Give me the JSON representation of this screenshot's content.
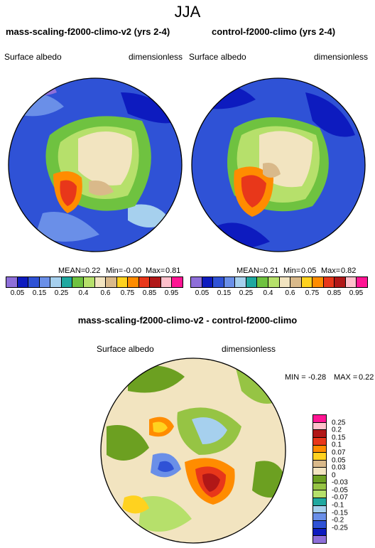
{
  "season": "JJA",
  "panels": [
    {
      "title": "mass-scaling-f2000-climo-v2 (yrs 2-4)",
      "var_label": "Surface albedo",
      "units": "dimensionless",
      "mean_label": "MEAN=",
      "mean": "0.22",
      "min_label": "Min=",
      "min": "-0.00",
      "max_label": "Max=",
      "max": "0.81"
    },
    {
      "title": "control-f2000-climo (yrs 2-4)",
      "var_label": "Surface albedo",
      "units": "dimensionless",
      "mean_label": "MEAN=",
      "mean": "0.21",
      "min_label": "Min=",
      "min": "0.05",
      "max_label": "Max=",
      "max": "0.82"
    }
  ],
  "colorbar": {
    "colors": [
      "#8e6fd9",
      "#0d1bbf",
      "#2f52d6",
      "#6a8fe8",
      "#a6d0ee",
      "#1fa8a0",
      "#6fc240",
      "#b6e06b",
      "#f2e4c0",
      "#d9b98a",
      "#ffd21f",
      "#ff8c00",
      "#e8371a",
      "#b11717",
      "#ffc0cb",
      "#ff1493"
    ],
    "ticks": [
      "0.05",
      "0.15",
      "0.25",
      "0.4",
      "0.6",
      "0.75",
      "0.85",
      "0.95"
    ]
  },
  "diff": {
    "title": "mass-scaling-f2000-climo-v2 - control-f2000-climo",
    "var_label": "Surface albedo",
    "units": "dimensionless",
    "min_label": "MIN =",
    "min": "-0.28",
    "max_label": "MAX =",
    "max": "0.22",
    "colors": [
      "#ff1493",
      "#ffc0cb",
      "#b11717",
      "#e8371a",
      "#ff8c00",
      "#ffd21f",
      "#d9b98a",
      "#f2e4c0",
      "#6ca021",
      "#96c444",
      "#b6e06b",
      "#1fa8a0",
      "#a6d0ee",
      "#6a8fe8",
      "#2f52d6",
      "#0d1bbf",
      "#8e6fd9"
    ],
    "ticks": [
      "0.25",
      "0.2",
      "0.15",
      "0.1",
      "0.07",
      "0.05",
      "0.03",
      "0",
      "-0.03",
      "-0.05",
      "-0.07",
      "-0.1",
      "-0.15",
      "-0.2",
      "-0.25"
    ]
  }
}
